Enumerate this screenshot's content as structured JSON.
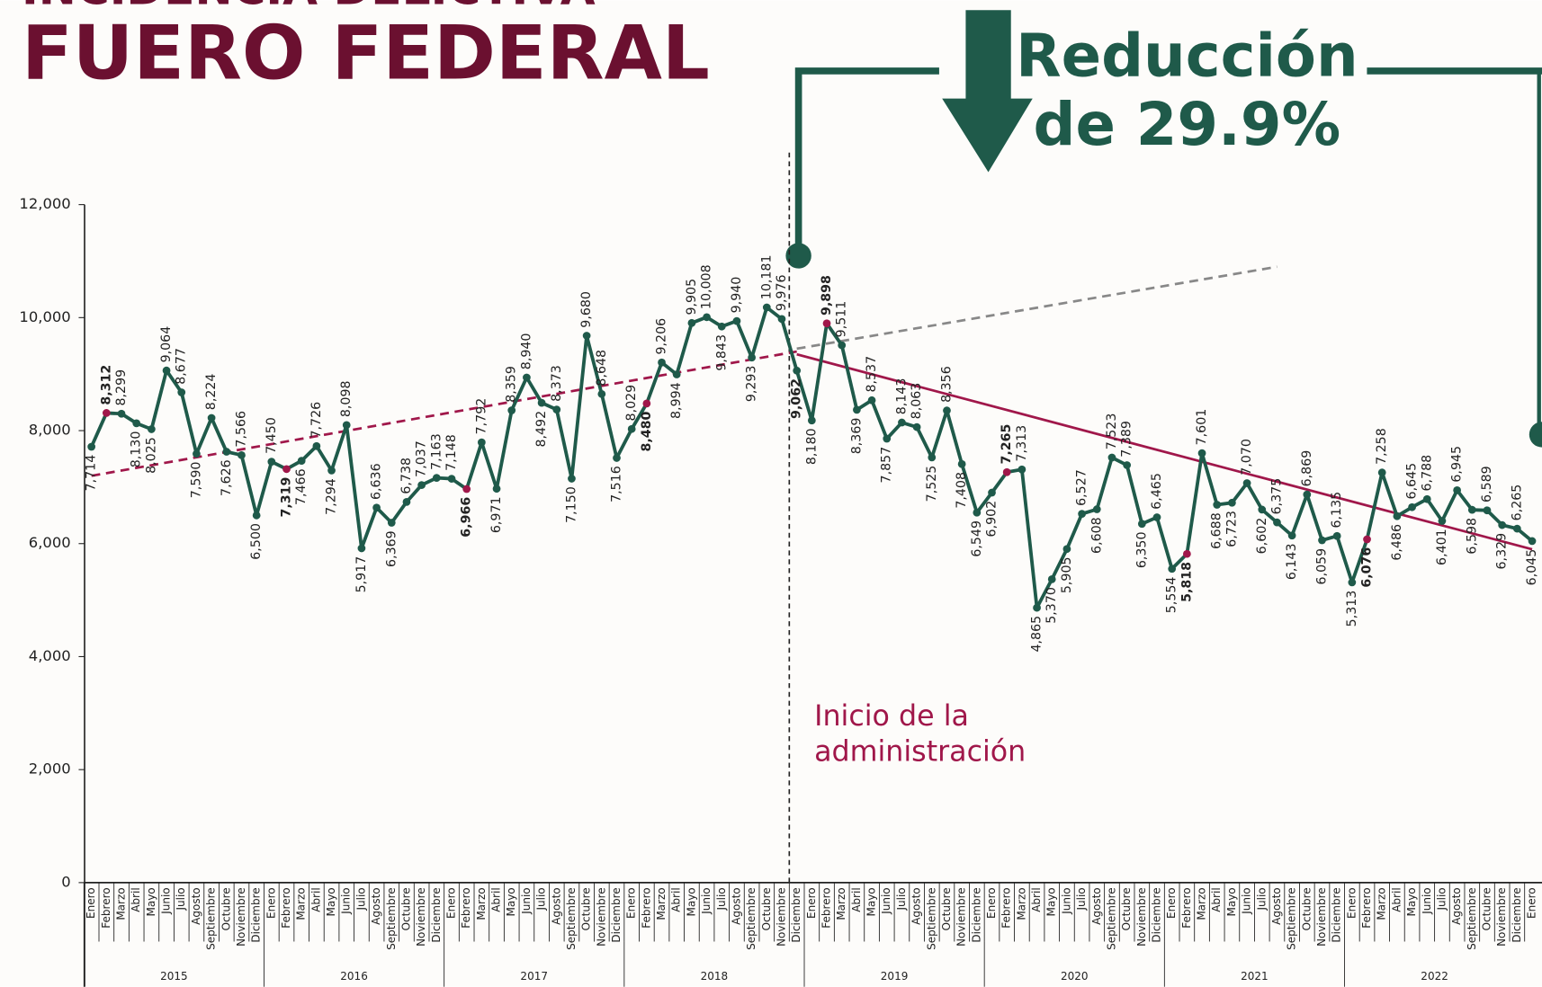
{
  "chart_data": {
    "type": "line",
    "title_top": "INCIDENCIA DELICTIVA",
    "title": "FUERO FEDERAL",
    "annotation_lines": [
      "Reducción",
      "de 29.9%"
    ],
    "admin_label_lines": [
      "Inicio de la",
      "administración"
    ],
    "admin_line_x": 46.5,
    "years": [
      "2015",
      "2016",
      "2017",
      "2018",
      "2019",
      "2020",
      "2021",
      "2022"
    ],
    "categories": [
      "Enero",
      "Febrero",
      "Marzo",
      "Abril",
      "Mayo",
      "Junio",
      "Julio",
      "Agosto",
      "Septiembre",
      "Octubre",
      "Noviembre",
      "Diciembre",
      "Enero",
      "Febrero",
      "Marzo",
      "Abril",
      "Mayo",
      "Junio",
      "Julio",
      "Agosto",
      "Septiembre",
      "Octubre",
      "Noviembre",
      "Diciembre",
      "Enero",
      "Febrero",
      "Marzo",
      "Abril",
      "Mayo",
      "Junio",
      "Julio",
      "Agosto",
      "Septiembre",
      "Octubre",
      "Noviembre",
      "Diciembre",
      "Enero",
      "Febrero",
      "Marzo",
      "Abril",
      "Mayo",
      "Junio",
      "Julio",
      "Agosto",
      "Septiembre",
      "Octubre",
      "Noviembre",
      "Diciembre",
      "Enero",
      "Febrero",
      "Marzo",
      "Abril",
      "Mayo",
      "Junio",
      "Julio",
      "Agosto",
      "Septiembre",
      "Octubre",
      "Noviembre",
      "Diciembre",
      "Enero",
      "Febrero",
      "Marzo",
      "Abril",
      "Mayo",
      "Junio",
      "Julio",
      "Agosto",
      "Septiembre",
      "Octubre",
      "Noviembre",
      "Diciembre",
      "Enero",
      "Febrero",
      "Marzo",
      "Abril",
      "Mayo",
      "Junio",
      "Julio",
      "Agosto",
      "Septiembre",
      "Octubre",
      "Noviembre",
      "Diciembre",
      "Enero",
      "Febrero",
      "Marzo",
      "Abril",
      "Mayo",
      "Junio",
      "Julio",
      "Agosto",
      "Septiembre",
      "Octubre",
      "Noviembre",
      "Diciembre",
      "Enero"
    ],
    "series": [
      {
        "name": "Incidencia",
        "color": "#1f5a4a",
        "values": [
          7714,
          8312,
          8299,
          8130,
          8025,
          9064,
          8677,
          7590,
          8224,
          7626,
          7566,
          6500,
          7450,
          7319,
          7466,
          7726,
          7294,
          8098,
          5917,
          6636,
          6369,
          6738,
          7037,
          7163,
          7148,
          6966,
          7792,
          6971,
          8359,
          8940,
          8492,
          8373,
          7150,
          9680,
          8648,
          7516,
          8029,
          8480,
          9206,
          8994,
          9905,
          10008,
          9843,
          9940,
          9293,
          10181,
          9976,
          9062,
          8180,
          9898,
          9511,
          8369,
          8537,
          7857,
          8143,
          8063,
          7525,
          8356,
          7408,
          6549,
          6902,
          7265,
          7313,
          4865,
          5370,
          5905,
          6527,
          6608,
          7523,
          7389,
          6350,
          6465,
          5554,
          5818,
          7601,
          6688,
          6723,
          7070,
          6602,
          6375,
          6143,
          6869,
          6059,
          6135,
          5313,
          6076,
          7258,
          6486,
          6645,
          6788,
          6401,
          6945,
          6598,
          6589,
          6329,
          6265,
          6045
        ],
        "value_labels": [
          "7,714",
          "8,312",
          "8,299",
          "8,130",
          "8,025",
          "9,064",
          "8,677",
          "7,590",
          "8,224",
          "7,626",
          "7,566",
          "6,500",
          "7,450",
          "7,319",
          "7,466",
          "7,726",
          "7,294",
          "8,098",
          "5,917",
          "6,636",
          "6,369",
          "6,738",
          "7,037",
          "7,163",
          "7,148",
          "6,966",
          "7,792",
          "6,971",
          "8,359",
          "8,940",
          "8,492",
          "8,373",
          "7,150",
          "9,680",
          "8,648",
          "7,516",
          "8,029",
          "8,480",
          "9,206",
          "8,994",
          "9,905",
          "10,008",
          "9,843",
          "9,940",
          "9,293",
          "10,181",
          "9,976",
          "9,062",
          "8,180",
          "9,898",
          "9,511",
          "8,369",
          "8,537",
          "7,857",
          "8,143",
          "8,063",
          "7,525",
          "8,356",
          "7,408",
          "6,549",
          "6,902",
          "7,265",
          "7,313",
          "4,865",
          "5,370",
          "5,905",
          "6,527",
          "6,608",
          "7,523",
          "7,389",
          "6,350",
          "6,465",
          "5,554",
          "5,818",
          "7,601",
          "6,688",
          "6,723",
          "7,070",
          "6,602",
          "6,375",
          "6,143",
          "6,869",
          "6,059",
          "6,135",
          "5,313",
          "6,076",
          "7,258",
          "6,486",
          "6,645",
          "6,788",
          "6,401",
          "6,945",
          "6,598",
          "6,589",
          "6,329",
          "6,265",
          "6,045"
        ]
      }
    ],
    "highlight_color": "#a0174a",
    "highlight_indices": [
      1,
      13,
      25,
      37,
      49,
      61,
      73,
      85
    ],
    "gold_color": "#c49a5a",
    "gold_index": 47,
    "trend_lines": [
      {
        "x": [
          0,
          47
        ],
        "y": [
          7200,
          9400
        ],
        "color": "#a0174a",
        "dash": true
      },
      {
        "x": [
          47,
          79
        ],
        "y": [
          9450,
          10900
        ],
        "color": "#888888",
        "dash": true
      },
      {
        "x": [
          47,
          96
        ],
        "y": [
          9350,
          5900
        ],
        "color": "#a0174a",
        "dash": false
      }
    ],
    "ylim": [
      0,
      12000
    ],
    "yticks": [
      0,
      {
        "value": 2000,
        "label": "2,000"
      },
      {
        "value": 4000,
        "label": "4,000"
      },
      {
        "value": 6000,
        "label": "6,000"
      },
      {
        "value": 8000,
        "label": "8,000"
      },
      {
        "value": 10000,
        "label": "10,000"
      },
      {
        "value": 12000,
        "label": "12,000"
      }
    ]
  }
}
